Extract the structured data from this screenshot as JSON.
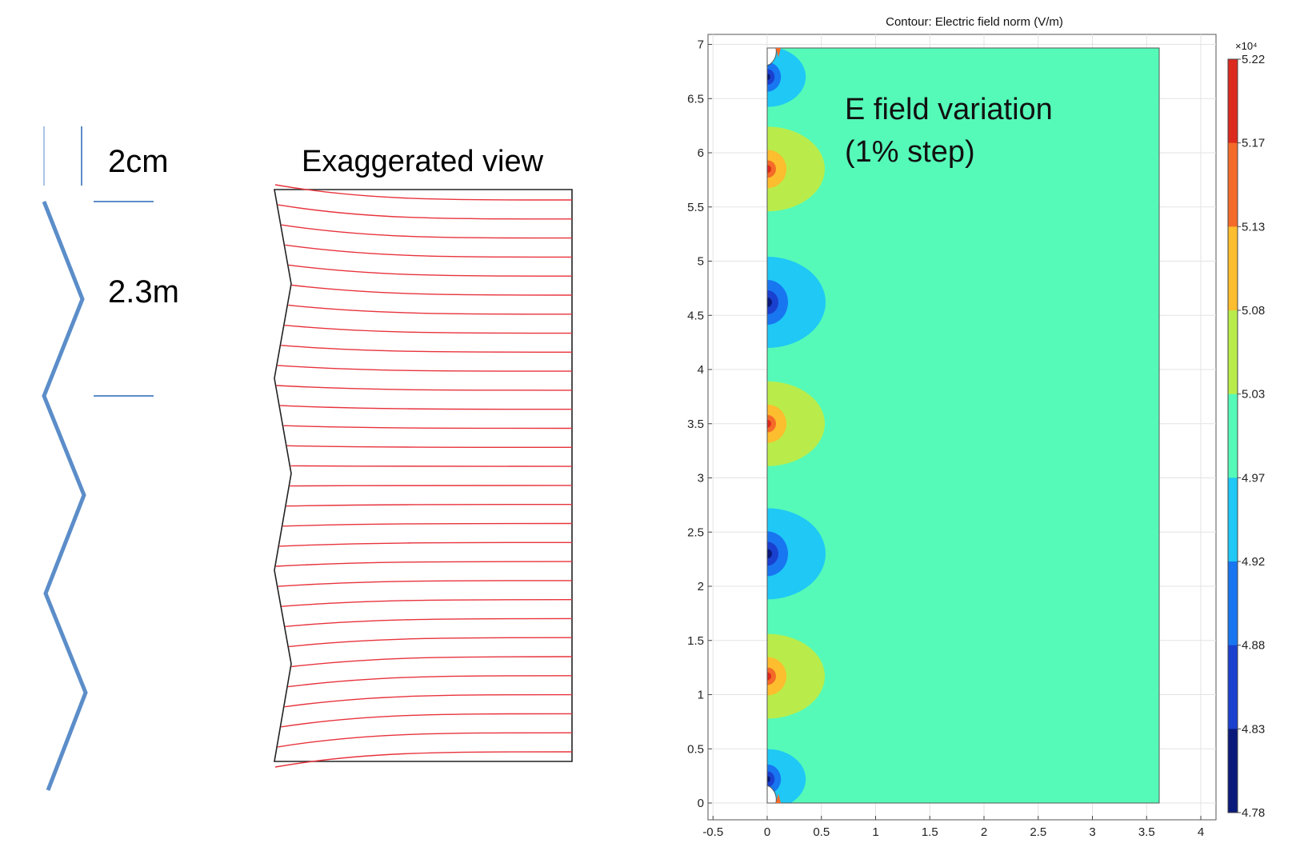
{
  "left": {
    "label_top": "2cm",
    "label_mid": "2.3m"
  },
  "middle": {
    "title": "Exaggerated view",
    "colors": {
      "lines": "#e8333c",
      "outline": "#222222"
    }
  },
  "colors": {
    "zigzag": "#5b8dc9",
    "annotation": "#000000"
  },
  "contour": {
    "title": "Contour: Electric field norm (V/m)",
    "annotation_line1": "E field variation",
    "annotation_line2": "(1% step)",
    "x_ticks": [
      "-0.5",
      "0",
      "0.5",
      "1",
      "1.5",
      "2",
      "2.5",
      "3",
      "3.5",
      "4"
    ],
    "y_ticks": [
      "0",
      "0.5",
      "1",
      "1.5",
      "2",
      "2.5",
      "3",
      "3.5",
      "4",
      "4.5",
      "5",
      "5.5",
      "6",
      "6.5",
      "7"
    ],
    "colorbar_exponent": "×10⁴",
    "colorbar_labels": [
      "5.22",
      "5.17",
      "5.13",
      "5.08",
      "5.03",
      "4.97",
      "4.92",
      "4.88",
      "4.83",
      "4.78"
    ],
    "colorbar_colors": [
      "#dd2a1e",
      "#f46a28",
      "#fcbd2e",
      "#b9ec4a",
      "#55fab8",
      "#1fc8f5",
      "#1876f0",
      "#1a40cf",
      "#0a1a7a"
    ],
    "field_colors": {
      "background": "#55fab8",
      "high_outer": "#b9ec4a",
      "high_mid": "#fcbd2e",
      "high_inner": "#f46a28",
      "high_core": "#dd2a1e",
      "low_outer": "#1fc8f5",
      "low_mid": "#1876f0",
      "low_inner": "#1a40cf",
      "low_core": "#0a1a7a"
    }
  }
}
